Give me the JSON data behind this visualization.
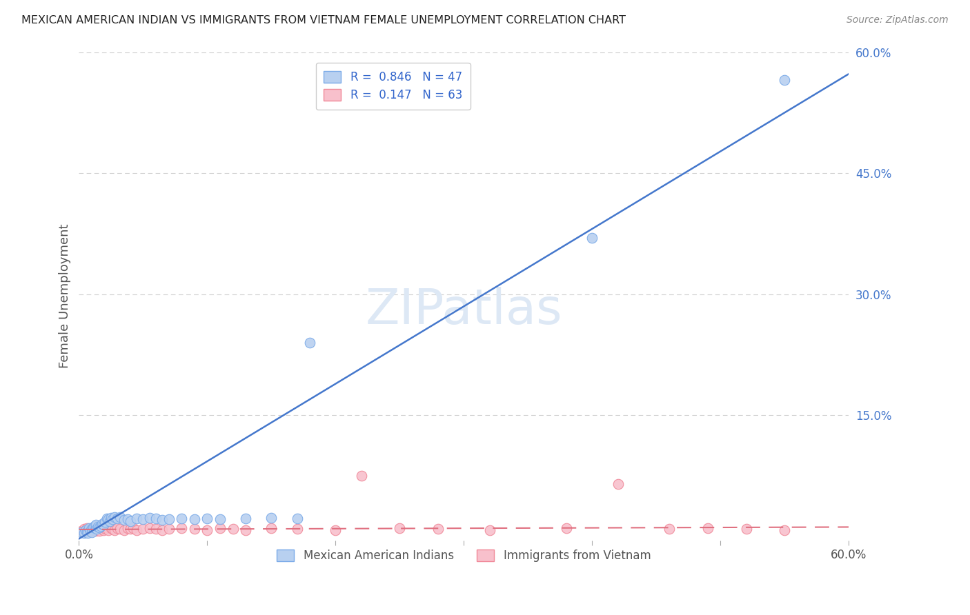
{
  "title": "MEXICAN AMERICAN INDIAN VS IMMIGRANTS FROM VIETNAM FEMALE UNEMPLOYMENT CORRELATION CHART",
  "source": "Source: ZipAtlas.com",
  "ylabel": "Female Unemployment",
  "xlim": [
    0.0,
    0.6
  ],
  "ylim": [
    -0.005,
    0.6
  ],
  "yticks_right": [
    0.15,
    0.3,
    0.45,
    0.6
  ],
  "ytick_labels_right": [
    "15.0%",
    "30.0%",
    "45.0%",
    "60.0%"
  ],
  "grid_color": "#d0d0d0",
  "background_color": "#ffffff",
  "series1": {
    "label": "Mexican American Indians",
    "R": 0.846,
    "N": 47,
    "marker_facecolor": "#b8d0f0",
    "marker_edgecolor": "#7aaae8",
    "line_color": "#4477cc",
    "line_slope": 0.96,
    "line_intercept": -0.003,
    "x": [
      0.002,
      0.004,
      0.005,
      0.006,
      0.007,
      0.008,
      0.009,
      0.01,
      0.01,
      0.011,
      0.012,
      0.013,
      0.013,
      0.014,
      0.015,
      0.016,
      0.017,
      0.018,
      0.019,
      0.02,
      0.022,
      0.023,
      0.024,
      0.025,
      0.026,
      0.028,
      0.03,
      0.032,
      0.035,
      0.038,
      0.04,
      0.045,
      0.05,
      0.055,
      0.06,
      0.065,
      0.07,
      0.08,
      0.09,
      0.1,
      0.11,
      0.13,
      0.15,
      0.17,
      0.18,
      0.4,
      0.55
    ],
    "y": [
      0.005,
      0.004,
      0.008,
      0.006,
      0.004,
      0.01,
      0.007,
      0.009,
      0.005,
      0.011,
      0.013,
      0.01,
      0.014,
      0.009,
      0.012,
      0.011,
      0.013,
      0.015,
      0.014,
      0.018,
      0.022,
      0.021,
      0.019,
      0.023,
      0.021,
      0.024,
      0.022,
      0.024,
      0.02,
      0.021,
      0.019,
      0.022,
      0.021,
      0.023,
      0.022,
      0.02,
      0.021,
      0.022,
      0.021,
      0.022,
      0.021,
      0.022,
      0.023,
      0.022,
      0.24,
      0.37,
      0.565
    ]
  },
  "series2": {
    "label": "Immigrants from Vietnam",
    "R": 0.147,
    "N": 63,
    "marker_facecolor": "#f8c0cc",
    "marker_edgecolor": "#f08898",
    "line_color": "#e07080",
    "line_slope": 0.005,
    "line_intercept": 0.0085,
    "x": [
      0.002,
      0.003,
      0.004,
      0.005,
      0.006,
      0.006,
      0.007,
      0.008,
      0.008,
      0.009,
      0.01,
      0.01,
      0.011,
      0.012,
      0.012,
      0.013,
      0.013,
      0.014,
      0.015,
      0.015,
      0.016,
      0.016,
      0.017,
      0.018,
      0.019,
      0.02,
      0.021,
      0.022,
      0.023,
      0.025,
      0.026,
      0.028,
      0.03,
      0.032,
      0.035,
      0.038,
      0.04,
      0.042,
      0.045,
      0.05,
      0.055,
      0.06,
      0.065,
      0.07,
      0.08,
      0.09,
      0.1,
      0.11,
      0.12,
      0.13,
      0.15,
      0.17,
      0.2,
      0.22,
      0.25,
      0.28,
      0.32,
      0.38,
      0.42,
      0.46,
      0.49,
      0.52,
      0.55
    ],
    "y": [
      0.007,
      0.006,
      0.009,
      0.008,
      0.007,
      0.01,
      0.008,
      0.009,
      0.007,
      0.008,
      0.01,
      0.007,
      0.009,
      0.008,
      0.011,
      0.009,
      0.007,
      0.01,
      0.009,
      0.008,
      0.01,
      0.007,
      0.011,
      0.009,
      0.008,
      0.01,
      0.009,
      0.011,
      0.008,
      0.01,
      0.009,
      0.008,
      0.01,
      0.009,
      0.008,
      0.01,
      0.009,
      0.01,
      0.008,
      0.009,
      0.01,
      0.009,
      0.008,
      0.009,
      0.01,
      0.009,
      0.008,
      0.01,
      0.009,
      0.008,
      0.01,
      0.009,
      0.008,
      0.075,
      0.01,
      0.009,
      0.008,
      0.01,
      0.065,
      0.009,
      0.01,
      0.009,
      0.008
    ]
  },
  "watermark_text": "ZIPatlas",
  "watermark_color": "#dde8f5",
  "watermark_fontsize": 52
}
